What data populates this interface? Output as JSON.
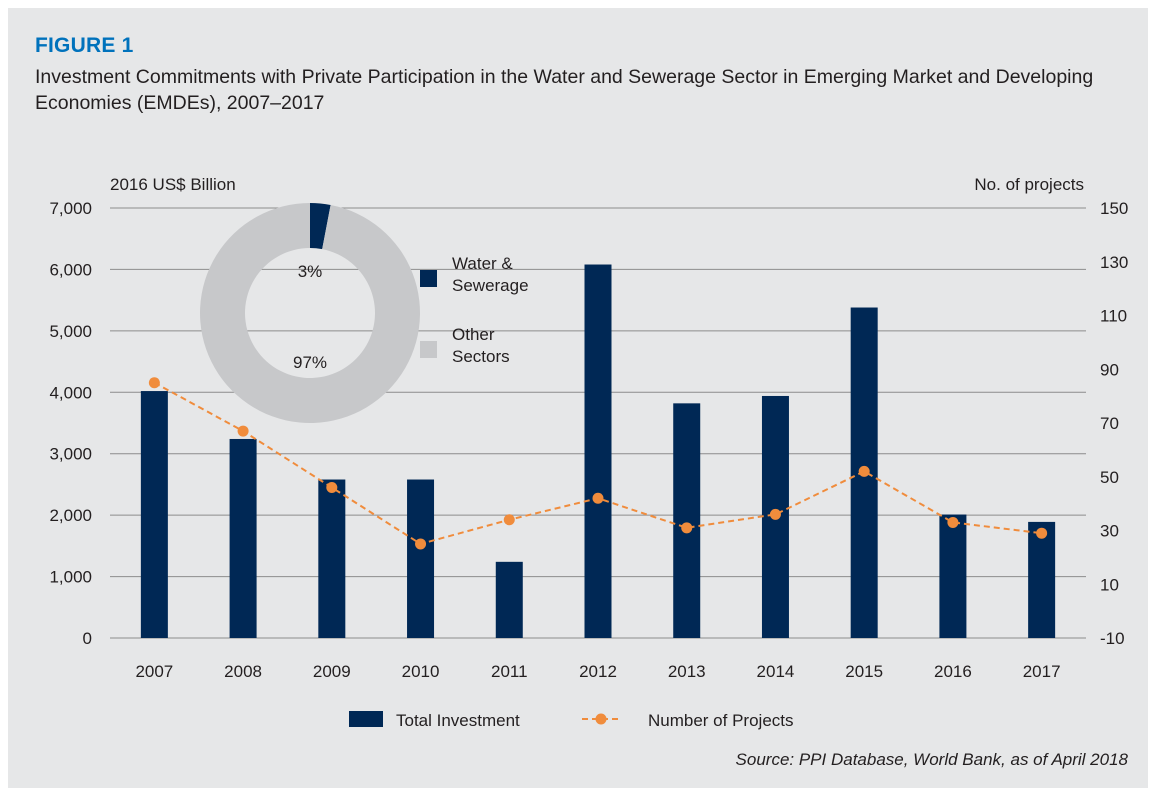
{
  "figure": {
    "label": "FIGURE 1",
    "title": "Investment Commitments with Private Participation in the Water and Sewerage Sector in Emerging Market and Developing Economies (EMDEs), 2007–2017",
    "source": "Source: PPI Database, World Bank, as of April 2018"
  },
  "colors": {
    "bar": "#002855",
    "line": "#f08c3c",
    "donut_other": "#c7c8ca",
    "background": "#e6e7e8",
    "label_blue": "#0072bc"
  },
  "chart_data": [
    {
      "type": "bar",
      "categories": [
        "2007",
        "2008",
        "2009",
        "2010",
        "2011",
        "2012",
        "2013",
        "2014",
        "2015",
        "2016",
        "2017"
      ],
      "left_axis": {
        "label": "2016 US$ Billion",
        "range": [
          0,
          7000
        ],
        "ticks": [
          0,
          1000,
          2000,
          3000,
          4000,
          5000,
          6000,
          7000
        ],
        "tick_labels": [
          "0",
          "1,000",
          "2,000",
          "3,000",
          "4,000",
          "5,000",
          "6,000",
          "7,000"
        ]
      },
      "right_axis": {
        "label": "No. of projects",
        "range": [
          -10,
          150
        ],
        "ticks": [
          -10,
          10,
          30,
          50,
          70,
          90,
          110,
          130,
          150
        ],
        "tick_labels": [
          "-10",
          "10",
          "30",
          "50",
          "70",
          "90",
          "110",
          "130",
          "150"
        ]
      },
      "grid": true,
      "legend_position": "bottom",
      "series": [
        {
          "name": "Total Investment",
          "type": "bar",
          "axis": "left",
          "values": [
            4020,
            3240,
            2580,
            2580,
            1240,
            6080,
            3820,
            3940,
            5380,
            2010,
            1890
          ]
        },
        {
          "name": "Number of Projects",
          "type": "line",
          "style": "dashed-with-markers",
          "axis": "right",
          "values": [
            85,
            67,
            46,
            25,
            34,
            42,
            31,
            36,
            52,
            33,
            29
          ]
        }
      ]
    },
    {
      "type": "pie",
      "style": "donut",
      "categories": [
        "Water & Sewerage",
        "Other Sectors"
      ],
      "values": [
        3,
        97
      ],
      "labels": [
        "3%",
        "97%"
      ],
      "legend_position": "right"
    }
  ]
}
